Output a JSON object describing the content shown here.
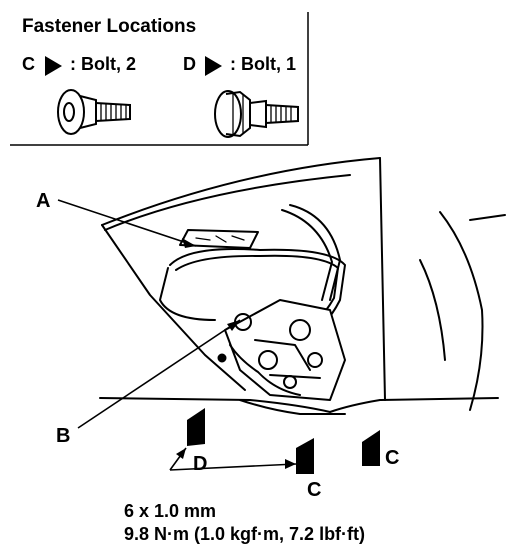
{
  "legend": {
    "title": "Fastener Locations",
    "items": [
      {
        "letter": "C",
        "text": ": Bolt, 2"
      },
      {
        "letter": "D",
        "text": ": Bolt, 1"
      }
    ]
  },
  "callouts": [
    {
      "letter": "A"
    },
    {
      "letter": "B"
    },
    {
      "letter": "C"
    },
    {
      "letter": "C"
    },
    {
      "letter": "D"
    }
  ],
  "spec": {
    "size": "6 x 1.0 mm",
    "torque": "9.8 N·m (1.0 kgf·m, 7.2 lbf·ft)"
  },
  "colors": {
    "ink": "#000000",
    "paper": "#ffffff"
  }
}
